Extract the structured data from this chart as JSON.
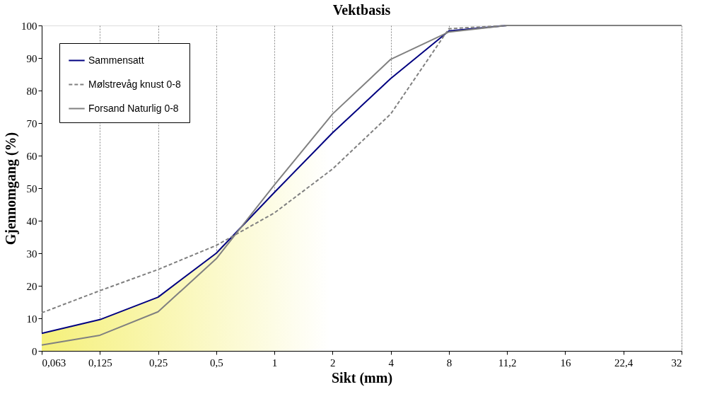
{
  "chart_data": {
    "type": "line",
    "title": "Vektbasis",
    "xlabel": "Sikt (mm)",
    "ylabel": "Gjennomgang (%)",
    "categories": [
      "0,063",
      "0,125",
      "0,25",
      "0,5",
      "1",
      "2",
      "4",
      "8",
      "11,2",
      "16",
      "22,4",
      "32"
    ],
    "series": [
      {
        "name": "Sammensatt",
        "type": "area",
        "color": "#000080",
        "line_style": "solid",
        "values": [
          5.4,
          9.6,
          16.5,
          30,
          48.7,
          67,
          83.7,
          98.3,
          100,
          100,
          100,
          100
        ]
      },
      {
        "name": "Mølstrevåg knust 0-8",
        "type": "line",
        "color": "#808080",
        "line_style": "dashed",
        "values": [
          11.7,
          18.5,
          25,
          32.4,
          42.4,
          55.9,
          72.8,
          99,
          100,
          100,
          100,
          100
        ]
      },
      {
        "name": "Forsand Naturlig 0-8",
        "type": "line",
        "color": "#808080",
        "line_style": "solid",
        "values": [
          1.8,
          4.8,
          12,
          28.3,
          51,
          72.8,
          89.6,
          98,
          100,
          100,
          100,
          100
        ]
      }
    ],
    "ylim": [
      0,
      100
    ],
    "yticks": [
      0,
      10,
      20,
      30,
      40,
      50,
      60,
      70,
      80,
      90,
      100
    ],
    "grid": "x",
    "legend": "top left",
    "marker": "none"
  }
}
